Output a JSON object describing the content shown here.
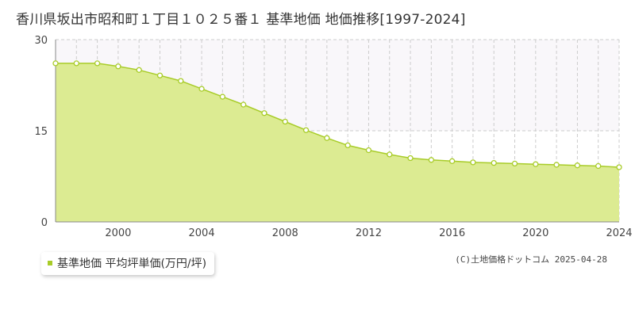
{
  "chart_data": {
    "type": "area",
    "title": "香川県坂出市昭和町１丁目１０２５番１ 基準地価 地価推移[1997-2024]",
    "x": [
      1997,
      1998,
      1999,
      2000,
      2001,
      2002,
      2003,
      2004,
      2005,
      2006,
      2007,
      2008,
      2009,
      2010,
      2011,
      2012,
      2013,
      2014,
      2015,
      2016,
      2017,
      2018,
      2019,
      2020,
      2021,
      2022,
      2023,
      2024
    ],
    "series": [
      {
        "name": "基準地価 平均坪単価(万円/坪)",
        "color": "#a8cc28",
        "values": [
          26.1,
          26.1,
          26.1,
          25.6,
          25.0,
          24.1,
          23.2,
          21.9,
          20.6,
          19.3,
          17.9,
          16.5,
          15.1,
          13.8,
          12.6,
          11.8,
          11.1,
          10.5,
          10.2,
          10.0,
          9.8,
          9.7,
          9.6,
          9.5,
          9.4,
          9.3,
          9.2,
          9.0
        ]
      }
    ],
    "x_tick_labels": [
      "2000",
      "2004",
      "2008",
      "2012",
      "2016",
      "2020",
      "2024"
    ],
    "y_tick_labels": [
      "0",
      "15",
      "30"
    ],
    "xlim": [
      1997,
      2024
    ],
    "ylim": [
      0,
      30
    ],
    "xlabel": "",
    "ylabel": "",
    "grid": true,
    "legend_position": "bottom-left"
  },
  "legend": {
    "label": "基準地価 平均坪単価(万円/坪)",
    "color": "#a8cc28"
  },
  "copyright": "(C)土地価格ドットコム 2025-04-28",
  "colors": {
    "area_fill": "#dceb92",
    "line": "#a8cc28",
    "upper_band": "#f9f7fa",
    "grid": "#cccccc",
    "axis": "#888888"
  }
}
